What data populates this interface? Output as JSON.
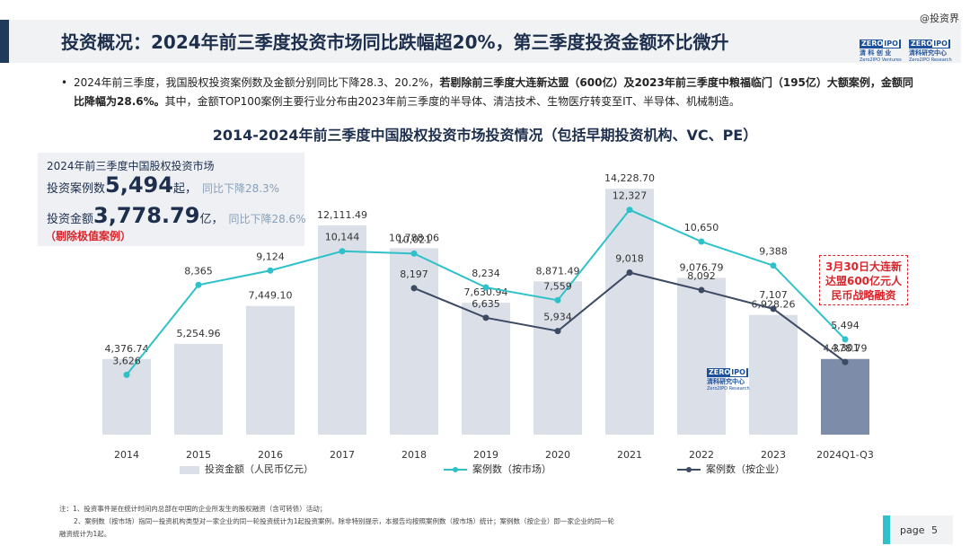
{
  "header": {
    "title": "投资概况：2024年前三季度投资市场同比跌幅超20%，第三季度投资金额环比微升",
    "watermark": "@投资界",
    "logo_left": {
      "box_a": "ZERO",
      "box_b": "IPO",
      "cn": "清 科 创 业",
      "en": "Zero2IPO Ventures"
    },
    "logo_right": {
      "box_a": "ZERO",
      "box_b": "IPO",
      "cn": "清科研究中心",
      "en": "Zero2IPO Research"
    }
  },
  "bullet": {
    "part1": "2024年前三季度，我国股权投资案例数及金额分别同比下降28.3、20.2%，",
    "part2_bold": "若剔除前三季度大连新达盟（600亿）及2023年前三季度中粮福临门（195亿）大额案例，金额同比降幅为28.6%。",
    "part3": "其中，金额TOP100案例主要行业分布由2023年前三季度的半导体、清洁技术、生物医疗转变至IT、半导体、机械制造。"
  },
  "summary": {
    "heading": "2024年前三季度中国股权投资市场",
    "cases_label": "投资案例数",
    "cases_value": "5,494",
    "cases_unit": "起，",
    "cases_yoy": "同比下降28.3%",
    "amount_label": "投资金额",
    "amount_value": "3,778.79",
    "amount_unit": "亿，",
    "amount_yoy": "同比下降28.6%",
    "note": "（剔除极值案例）"
  },
  "callout": {
    "line1": "3月30日大连新",
    "line2": "达盟600亿元人",
    "line3": "民币战略融资"
  },
  "chart_watermark": {
    "box_a": "ZERO",
    "box_b": "IPO",
    "cn": "清科研究中心",
    "en": "Zero2IPO Research"
  },
  "chart_data": {
    "type": "bar",
    "title": "2014-2024年前三季度中国股权投资市场投资情况（包括早期投资机构、VC、PE）",
    "categories": [
      "2014",
      "2015",
      "2016",
      "2017",
      "2018",
      "2019",
      "2020",
      "2021",
      "2022",
      "2023",
      "2024Q1-Q3"
    ],
    "series": [
      {
        "name": "投资金额（人民币亿元）",
        "type": "bar",
        "values": [
          4376.74,
          5254.96,
          7449.1,
          12111.49,
          10788.06,
          7630.94,
          8871.49,
          14228.7,
          9076.79,
          6928.26,
          4378.79
        ],
        "labels": [
          "4,376.74",
          "5,254.96",
          "7,449.10",
          "12,111.49",
          "10,788.06",
          "7,630.94",
          "8,871.49",
          "14,228.70",
          "9,076.79",
          "6,928.26",
          "4,378.79"
        ],
        "colors": [
          "#dbdfe8",
          "#dbdfe8",
          "#dbdfe8",
          "#dbdfe8",
          "#dbdfe8",
          "#dbdfe8",
          "#dbdfe8",
          "#dbdfe8",
          "#dbdfe8",
          "#dbdfe8",
          "#7d8ca8"
        ]
      },
      {
        "name": "案例数（按市场）",
        "type": "line",
        "color": "#2ec1c9",
        "values": [
          3626,
          8365,
          9124,
          10144,
          10021,
          8234,
          7559,
          12327,
          10650,
          9388,
          5494
        ],
        "labels": [
          "3,626",
          "8,365",
          "9,124",
          "10,144",
          "10,021",
          "8,234",
          "7,559",
          "12,327",
          "10,650",
          "9,388",
          "5,494"
        ]
      },
      {
        "name": "案例数（按企业）",
        "type": "line",
        "color": "#3c4a63",
        "values": [
          null,
          null,
          null,
          null,
          8197,
          6635,
          5934,
          9018,
          8092,
          7107,
          4301
        ],
        "labels": [
          "",
          "",
          "",
          "",
          "8,197",
          "6,635",
          "5,934",
          "9,018",
          "8,092",
          "7,107",
          "4,301"
        ]
      }
    ],
    "grid": false,
    "legend_position": "bottom"
  },
  "footnote": {
    "line1": "注：1、投资事件是在统计时间内总部在中国的企业所发生的股权融资（含可转债）活动；",
    "line2": "2、案例数（按市场）指同一投资机构类型对一家企业的同一轮投资统计为1起投资案例，除非特别提示，本报告均按照案例数（按市场）统计；案例数（按企业）即一家企业的同一轮",
    "line3": "融资统计为1起。"
  },
  "page": {
    "label": "page",
    "number": "5"
  }
}
